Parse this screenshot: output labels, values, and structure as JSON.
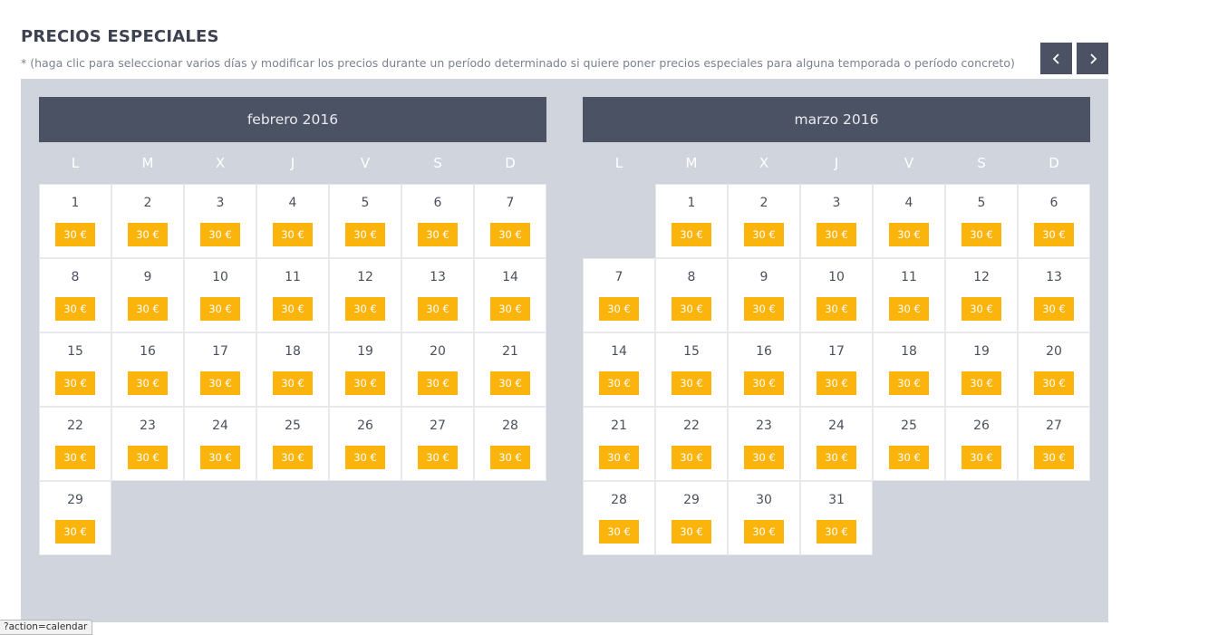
{
  "page": {
    "title": "PRECIOS ESPECIALES",
    "subtitle": "* (haga clic para seleccionar varios días y modificar los precios durante un período determinado si quiere poner precios especiales para alguna temporada o período concreto)"
  },
  "nav": {
    "prev_icon": "chevron-left-icon",
    "next_icon": "chevron-right-icon"
  },
  "weekdays": [
    "L",
    "M",
    "X",
    "J",
    "V",
    "S",
    "D"
  ],
  "months": [
    {
      "label": "febrero 2016",
      "offset": 0,
      "days": 29,
      "price": "30 €"
    },
    {
      "label": "marzo 2016",
      "offset": 1,
      "days": 31,
      "price": "30 €"
    }
  ],
  "colors": {
    "header": "#4b5263",
    "panel": "#d0d5dd",
    "price_badge": "#fbb40c"
  },
  "status_bar": {
    "url": "?action=calendar"
  }
}
